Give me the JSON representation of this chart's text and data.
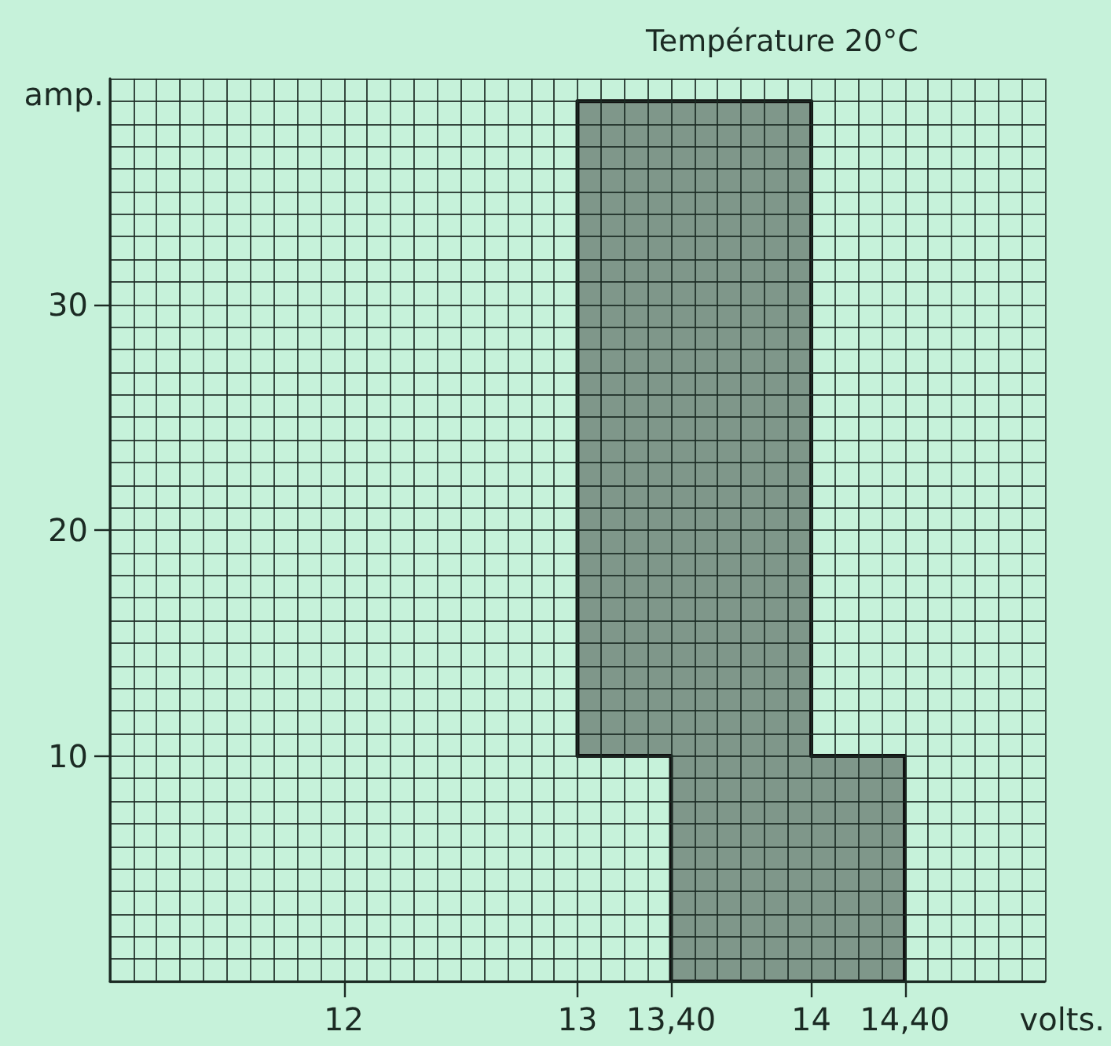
{
  "chart_data": {
    "type": "area",
    "title": "Température 20°C",
    "xlabel": "volts.",
    "ylabel": "amp.",
    "xlim": [
      11,
      15
    ],
    "ylim": [
      0,
      40
    ],
    "xticks": [
      12,
      13,
      {
        "value": 13.4,
        "label": "13,40"
      },
      14,
      {
        "value": 14.4,
        "label": "14,40"
      }
    ],
    "yticks": [
      10,
      20,
      30
    ],
    "grid": true,
    "series": [
      {
        "x": [
          13,
          13.4,
          13.4,
          14,
          14,
          14.4
        ],
        "values": [
          null,
          null,
          null,
          null,
          null,
          null
        ],
        "lower": [
          10,
          10,
          0,
          0,
          0,
          0
        ],
        "upper": [
          39,
          39,
          39,
          39,
          10,
          10
        ],
        "color": "#7f978a"
      }
    ]
  }
}
